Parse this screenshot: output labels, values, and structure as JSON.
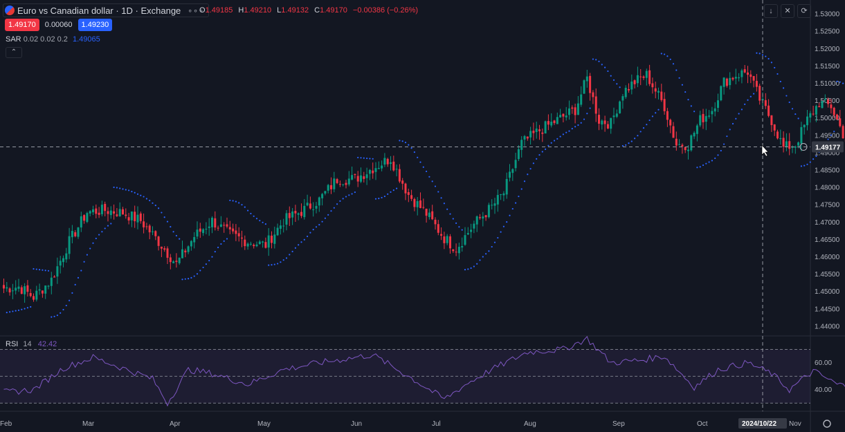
{
  "symbol": {
    "title": "Euro vs Canadian dollar · 1D · Exchange",
    "more": "∘∘∘"
  },
  "ohlc": {
    "o_label": "O",
    "o": "1.49185",
    "h_label": "H",
    "h": "1.49210",
    "l_label": "L",
    "l": "1.49132",
    "c_label": "C",
    "c": "1.49170",
    "change": "−0.00386 (−0.26%)"
  },
  "trade": {
    "sell": "1.49170",
    "spread": "0.00060",
    "buy": "1.49230"
  },
  "sar": {
    "name": "SAR",
    "params": "0.02 0.02 0.2",
    "value": "1.49065"
  },
  "rsi": {
    "name": "RSI",
    "params": "14",
    "value": "42.42"
  },
  "crosshair": {
    "price": "1.49177",
    "date": "2024/10/22"
  },
  "colors": {
    "bg": "#131722",
    "up": "#089981",
    "down": "#f23645",
    "sar": "#2962ff",
    "rsi": "#7e57c2"
  },
  "chart_data": [
    {
      "type": "candlestick",
      "title": "Euro vs Canadian dollar · 1D · Exchange",
      "indicators": [
        "Parabolic SAR (dots)"
      ],
      "ylim": [
        1.4375,
        1.5325
      ],
      "y_ticks": [
        "1.53000",
        "1.52500",
        "1.52000",
        "1.51500",
        "1.51000",
        "1.50500",
        "1.50000",
        "1.49500",
        "1.49000",
        "1.48500",
        "1.48000",
        "1.47500",
        "1.47000",
        "1.46500",
        "1.46000",
        "1.45500",
        "1.45000",
        "1.44500",
        "1.44000"
      ],
      "x_ticks": [
        "Feb",
        "Mar",
        "Apr",
        "May",
        "Jun",
        "Jul",
        "Aug",
        "Sep",
        "Oct",
        "Nov"
      ],
      "last_price": 1.4917,
      "close_anchors": [
        [
          0,
          1.451
        ],
        [
          5,
          1.4515
        ],
        [
          10,
          1.4485
        ],
        [
          16,
          1.4535
        ],
        [
          22,
          1.4645
        ],
        [
          28,
          1.473
        ],
        [
          34,
          1.4735
        ],
        [
          40,
          1.4728
        ],
        [
          46,
          1.4705
        ],
        [
          52,
          1.4645
        ],
        [
          58,
          1.458
        ],
        [
          64,
          1.466
        ],
        [
          70,
          1.4705
        ],
        [
          76,
          1.4665
        ],
        [
          82,
          1.4645
        ],
        [
          88,
          1.4635
        ],
        [
          94,
          1.4705
        ],
        [
          100,
          1.4732
        ],
        [
          106,
          1.4765
        ],
        [
          112,
          1.4825
        ],
        [
          118,
          1.4825
        ],
        [
          124,
          1.4857
        ],
        [
          130,
          1.4885
        ],
        [
          136,
          1.478
        ],
        [
          142,
          1.4725
        ],
        [
          148,
          1.4655
        ],
        [
          152,
          1.4625
        ],
        [
          158,
          1.4695
        ],
        [
          164,
          1.4745
        ],
        [
          168,
          1.4785
        ],
        [
          174,
          1.4928
        ],
        [
          180,
          1.4965
        ],
        [
          186,
          1.4995
        ],
        [
          192,
          1.5025
        ],
        [
          196,
          1.5115
        ],
        [
          200,
          1.4995
        ],
        [
          204,
          1.4985
        ],
        [
          208,
          1.5075
        ],
        [
          212,
          1.5105
        ],
        [
          216,
          1.5125
        ],
        [
          222,
          1.5035
        ],
        [
          226,
          1.4925
        ],
        [
          230,
          1.4925
        ],
        [
          234,
          1.4995
        ],
        [
          238,
          1.5025
        ],
        [
          242,
          1.5105
        ],
        [
          246,
          1.5125
        ],
        [
          250,
          1.5135
        ],
        [
          254,
          1.5055
        ],
        [
          258,
          1.4995
        ],
        [
          262,
          1.4915
        ],
        [
          266,
          1.4925
        ],
        [
          270,
          1.4995
        ],
        [
          274,
          1.5045
        ],
        [
          278,
          1.5035
        ],
        [
          281,
          1.4975
        ],
        [
          284,
          1.4917
        ]
      ]
    },
    {
      "type": "line",
      "title": "RSI 14",
      "ylim": [
        25,
        80
      ],
      "y_ticks": [
        "60.00",
        "40.00"
      ],
      "bands": [
        70,
        50,
        30
      ],
      "last_value": 42.42,
      "value_anchors": [
        [
          0,
          38
        ],
        [
          10,
          40
        ],
        [
          20,
          56
        ],
        [
          30,
          64
        ],
        [
          40,
          56
        ],
        [
          50,
          48
        ],
        [
          55,
          30
        ],
        [
          62,
          55
        ],
        [
          70,
          52
        ],
        [
          82,
          44
        ],
        [
          94,
          55
        ],
        [
          106,
          60
        ],
        [
          112,
          62
        ],
        [
          124,
          66
        ],
        [
          136,
          50
        ],
        [
          148,
          33
        ],
        [
          156,
          45
        ],
        [
          164,
          55
        ],
        [
          176,
          68
        ],
        [
          188,
          70
        ],
        [
          196,
          78
        ],
        [
          204,
          60
        ],
        [
          214,
          62
        ],
        [
          222,
          65
        ],
        [
          232,
          42
        ],
        [
          240,
          55
        ],
        [
          250,
          60
        ],
        [
          258,
          52
        ],
        [
          264,
          40
        ],
        [
          272,
          54
        ],
        [
          280,
          44
        ],
        [
          284,
          42.42
        ]
      ]
    }
  ]
}
